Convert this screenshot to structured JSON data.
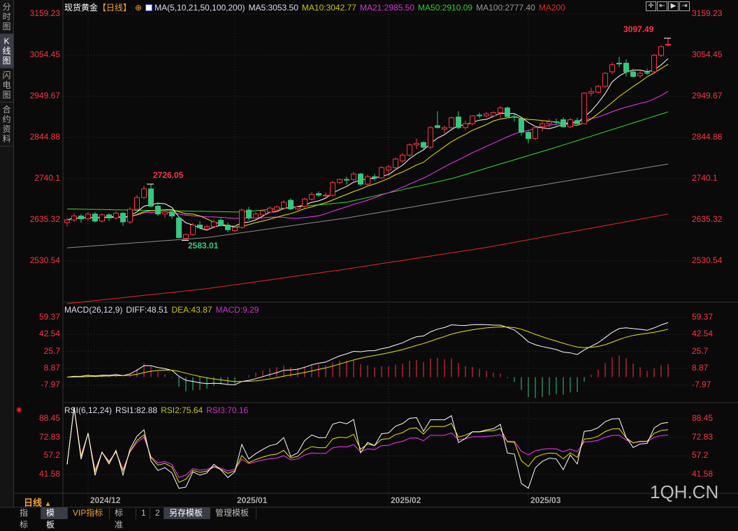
{
  "sidebar": {
    "tabs": [
      {
        "label": "分\n时\n图",
        "active": false
      },
      {
        "label": "K\n线\n图",
        "active": true
      },
      {
        "label": "闪\n电\n图",
        "active": false
      },
      {
        "label": "合\n约\n资\n料",
        "active": false
      }
    ]
  },
  "header": {
    "symbol": "现货黄金",
    "period": "【日线】",
    "ma_params": "MA(5,10,21,50,100,200)",
    "ma5": "MA5:3053.50",
    "ma10": "MA10:3042.77",
    "ma21": "MA21:2985.50",
    "ma50": "MA50:2910.09",
    "ma100": "MA100:2777.40",
    "ma200": "MA200"
  },
  "macd_header": {
    "params": "MACD(26,12,9)",
    "diff": "DIFF:48.51",
    "dea": "DEA:43.87",
    "macd": "MACD:9.29"
  },
  "rsi_header": {
    "params": "RSI(6,12,24)",
    "rsi1": "RSI1:82.88",
    "rsi2": "RSI2:75.64",
    "rsi3": "RSI3:70.16"
  },
  "period_label": "日线",
  "watermark": "1QH.CN",
  "bottom_tabs": [
    {
      "label": "指标",
      "active": false
    },
    {
      "label": "模板",
      "active": true
    },
    {
      "label": "VIP指标",
      "active": false,
      "vip": true
    },
    {
      "label": "标准",
      "active": false
    },
    {
      "label": "1",
      "active": false
    },
    {
      "label": "2",
      "active": false
    },
    {
      "label": "另存模板",
      "active": true
    },
    {
      "label": "管理模板",
      "active": false
    }
  ],
  "toolbar_icons": [
    "crosshair-icon",
    "zoom-fit-icon",
    "play-icon",
    "scroll-right-icon"
  ],
  "colors": {
    "up": "#ff3344",
    "down": "#35c87f",
    "ma5": "#ffffff",
    "ma10": "#e6e600",
    "ma21": "#ff33ff",
    "ma50": "#33dd33",
    "ma100": "#8c8c8c",
    "ma200": "#ee2222",
    "axis": "#ff3344"
  },
  "chart_data": {
    "type": "candlestick",
    "price_ticks": [
      3159.23,
      3054.45,
      2949.67,
      2844.88,
      2740.1,
      2635.32,
      2530.54
    ],
    "price_ylim": [
      2530.54,
      3159.23
    ],
    "annotations": [
      {
        "label": "3097.49",
        "index": 86,
        "kind": "high"
      },
      {
        "label": "2726.05",
        "index": 12,
        "kind": "high"
      },
      {
        "label": "2583.01",
        "index": 17,
        "kind": "low"
      }
    ],
    "date_ticks": [
      {
        "label": "2024/12",
        "index": 3
      },
      {
        "label": "2025/01",
        "index": 24
      },
      {
        "label": "2025/02",
        "index": 46
      },
      {
        "label": "2025/03",
        "index": 66
      }
    ],
    "ohlc": [
      [
        2628,
        2640,
        2618,
        2635
      ],
      [
        2635,
        2652,
        2630,
        2645
      ],
      [
        2645,
        2650,
        2628,
        2638
      ],
      [
        2638,
        2656,
        2634,
        2650
      ],
      [
        2650,
        2655,
        2628,
        2632
      ],
      [
        2632,
        2652,
        2628,
        2648
      ],
      [
        2648,
        2652,
        2632,
        2640
      ],
      [
        2640,
        2658,
        2636,
        2652
      ],
      [
        2652,
        2655,
        2620,
        2630
      ],
      [
        2630,
        2668,
        2625,
        2662
      ],
      [
        2662,
        2698,
        2658,
        2692
      ],
      [
        2692,
        2722,
        2688,
        2714
      ],
      [
        2714,
        2726.05,
        2668,
        2670
      ],
      [
        2670,
        2680,
        2645,
        2650
      ],
      [
        2650,
        2662,
        2640,
        2655
      ],
      [
        2655,
        2660,
        2638,
        2645
      ],
      [
        2640,
        2645,
        2588,
        2590
      ],
      [
        2588,
        2600,
        2583.01,
        2598
      ],
      [
        2598,
        2628,
        2594,
        2622
      ],
      [
        2622,
        2632,
        2612,
        2615
      ],
      [
        2612,
        2622,
        2608,
        2618
      ],
      [
        2618,
        2636,
        2614,
        2630
      ],
      [
        2634,
        2640,
        2618,
        2622
      ],
      [
        2622,
        2628,
        2604,
        2610
      ],
      [
        2608,
        2620,
        2604,
        2616
      ],
      [
        2616,
        2664,
        2612,
        2660
      ],
      [
        2660,
        2668,
        2634,
        2640
      ],
      [
        2640,
        2655,
        2636,
        2650
      ],
      [
        2648,
        2662,
        2645,
        2658
      ],
      [
        2655,
        2670,
        2652,
        2665
      ],
      [
        2660,
        2672,
        2655,
        2668
      ],
      [
        2665,
        2685,
        2660,
        2680
      ],
      [
        2685,
        2690,
        2660,
        2663
      ],
      [
        2663,
        2672,
        2656,
        2668
      ],
      [
        2670,
        2692,
        2666,
        2688
      ],
      [
        2688,
        2706,
        2684,
        2700
      ],
      [
        2702,
        2708,
        2694,
        2698
      ],
      [
        2696,
        2705,
        2690,
        2698
      ],
      [
        2698,
        2735,
        2694,
        2730
      ],
      [
        2730,
        2740,
        2726,
        2738
      ],
      [
        2738,
        2745,
        2725,
        2737
      ],
      [
        2738,
        2758,
        2734,
        2752
      ],
      [
        2752,
        2755,
        2722,
        2726
      ],
      [
        2726,
        2750,
        2722,
        2745
      ],
      [
        2745,
        2752,
        2735,
        2742
      ],
      [
        2742,
        2772,
        2740,
        2768
      ],
      [
        2762,
        2775,
        2752,
        2770
      ],
      [
        2768,
        2794,
        2762,
        2790
      ],
      [
        2785,
        2805,
        2780,
        2800
      ],
      [
        2800,
        2830,
        2796,
        2826
      ],
      [
        2826,
        2842,
        2815,
        2830
      ],
      [
        2832,
        2835,
        2815,
        2820
      ],
      [
        2820,
        2874,
        2816,
        2870
      ],
      [
        2875,
        2912,
        2868,
        2870
      ],
      [
        2866,
        2875,
        2855,
        2870
      ],
      [
        2870,
        2898,
        2866,
        2895
      ],
      [
        2897,
        2912,
        2866,
        2870
      ],
      [
        2870,
        2888,
        2864,
        2880
      ],
      [
        2880,
        2902,
        2876,
        2900
      ],
      [
        2902,
        2908,
        2894,
        2900
      ],
      [
        2900,
        2910,
        2896,
        2905
      ],
      [
        2900,
        2912,
        2896,
        2908
      ],
      [
        2908,
        2925,
        2895,
        2920
      ],
      [
        2920,
        2924,
        2895,
        2898
      ],
      [
        2898,
        2905,
        2885,
        2897
      ],
      [
        2892,
        2896,
        2850,
        2858
      ],
      [
        2858,
        2862,
        2830,
        2842
      ],
      [
        2842,
        2875,
        2838,
        2870
      ],
      [
        2872,
        2890,
        2860,
        2880
      ],
      [
        2880,
        2892,
        2870,
        2885
      ],
      [
        2885,
        2893,
        2876,
        2884
      ],
      [
        2890,
        2896,
        2870,
        2872
      ],
      [
        2872,
        2895,
        2868,
        2890
      ],
      [
        2888,
        2895,
        2875,
        2880
      ],
      [
        2880,
        2960,
        2878,
        2958
      ],
      [
        2958,
        2972,
        2950,
        2962
      ],
      [
        2960,
        2978,
        2956,
        2975
      ],
      [
        2975,
        3012,
        2970,
        3008
      ],
      [
        3012,
        3036,
        3006,
        3030
      ],
      [
        3034,
        3050,
        3024,
        3032
      ],
      [
        3034,
        3044,
        3000,
        3012
      ],
      [
        3012,
        3020,
        2998,
        3000
      ],
      [
        3002,
        3018,
        2996,
        3008
      ],
      [
        3010,
        3020,
        3004,
        3009
      ],
      [
        3012,
        3058,
        3008,
        3054
      ],
      [
        3054,
        3080,
        3050,
        3076
      ],
      [
        3080,
        3097.49,
        3076,
        3082
      ]
    ],
    "ma_long": {
      "ma50": [
        [
          0,
          2663
        ],
        [
          25,
          2655
        ],
        [
          40,
          2680
        ],
        [
          55,
          2740
        ],
        [
          70,
          2820
        ],
        [
          86,
          2910.09
        ]
      ],
      "ma100": [
        [
          0,
          2564
        ],
        [
          20,
          2590
        ],
        [
          40,
          2640
        ],
        [
          60,
          2700
        ],
        [
          86,
          2777.4
        ]
      ],
      "ma200": [
        [
          0,
          2422
        ],
        [
          20,
          2460
        ],
        [
          40,
          2510
        ],
        [
          60,
          2565
        ],
        [
          86,
          2650
        ]
      ]
    },
    "macd": {
      "params": [
        26,
        12,
        9
      ],
      "ticks": [
        59.37,
        42.54,
        25.7,
        8.87,
        -7.97
      ],
      "ylim": [
        -7.97,
        59.37
      ]
    },
    "rsi": {
      "params": [
        6,
        12,
        24
      ],
      "ticks": [
        88.45,
        72.83,
        57.2,
        41.58
      ],
      "ylim": [
        41.58,
        88.45
      ]
    }
  }
}
